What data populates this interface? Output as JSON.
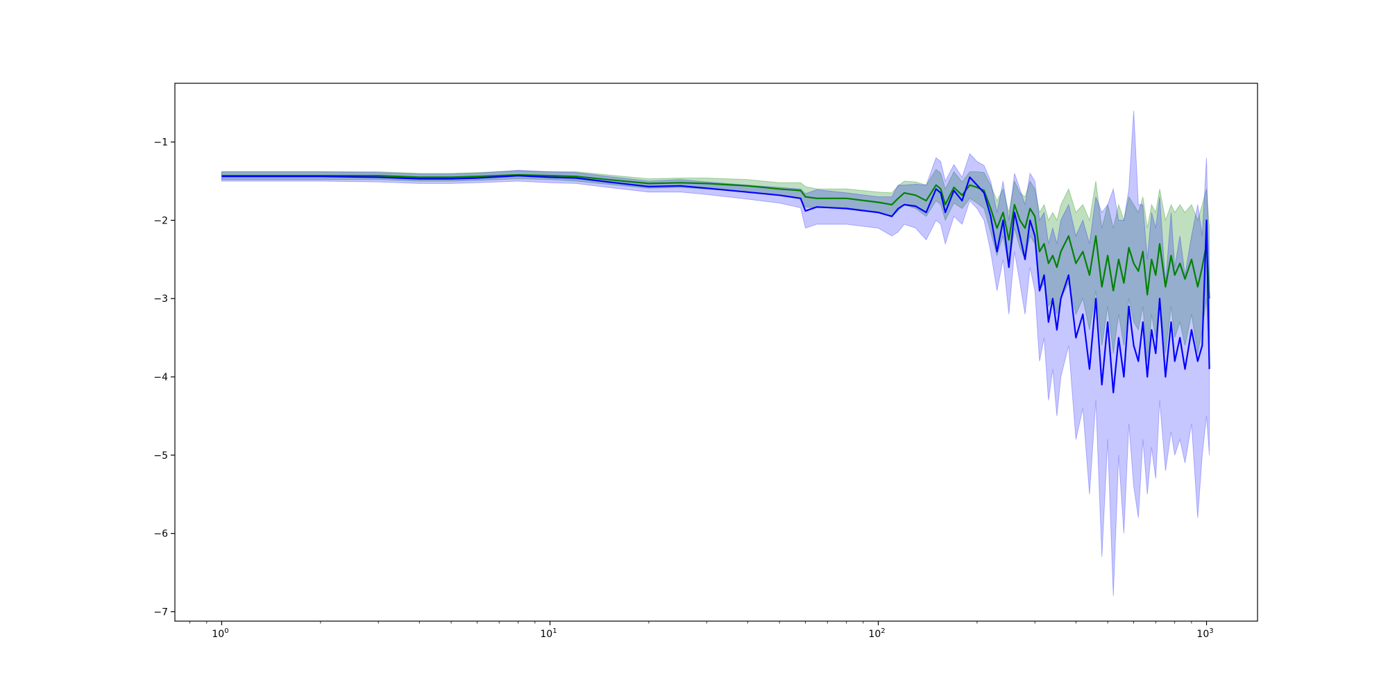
{
  "chart_data": {
    "type": "line",
    "xscale": "log",
    "xlim": [
      0.72,
      1430
    ],
    "ylim": [
      -7.12,
      -0.25
    ],
    "grid": false,
    "legend": "none",
    "title": "",
    "xlabel": "",
    "ylabel": "",
    "x_ticks": [
      {
        "value": 1,
        "base": "10",
        "exp": "0"
      },
      {
        "value": 10,
        "base": "10",
        "exp": "1"
      },
      {
        "value": 100,
        "base": "10",
        "exp": "2"
      },
      {
        "value": 1000,
        "base": "10",
        "exp": "3"
      }
    ],
    "y_ticks": [
      {
        "value": -1,
        "label": "−1"
      },
      {
        "value": -2,
        "label": "−2"
      },
      {
        "value": -3,
        "label": "−3"
      },
      {
        "value": -4,
        "label": "−4"
      },
      {
        "value": -5,
        "label": "−5"
      },
      {
        "value": -6,
        "label": "−6"
      },
      {
        "value": -7,
        "label": "−7"
      }
    ],
    "series": [
      {
        "color": "#008000",
        "band_color": "#008000",
        "band_opacity": 0.25,
        "x": [
          1,
          2,
          3,
          4,
          5,
          6,
          8,
          10,
          12,
          15,
          20,
          25,
          30,
          40,
          50,
          58,
          60,
          65,
          80,
          100,
          110,
          115,
          120,
          130,
          140,
          150,
          155,
          160,
          170,
          180,
          190,
          200,
          210,
          220,
          230,
          240,
          250,
          260,
          270,
          280,
          290,
          300,
          310,
          320,
          330,
          340,
          350,
          360,
          380,
          400,
          420,
          440,
          460,
          480,
          500,
          520,
          540,
          560,
          580,
          600,
          620,
          640,
          660,
          680,
          700,
          720,
          750,
          780,
          800,
          830,
          860,
          900,
          940,
          970,
          1000,
          1020
        ],
        "y": [
          -1.43,
          -1.43,
          -1.43,
          -1.45,
          -1.45,
          -1.44,
          -1.42,
          -1.43,
          -1.44,
          -1.48,
          -1.53,
          -1.52,
          -1.53,
          -1.56,
          -1.6,
          -1.62,
          -1.7,
          -1.72,
          -1.72,
          -1.77,
          -1.8,
          -1.72,
          -1.65,
          -1.68,
          -1.75,
          -1.55,
          -1.6,
          -1.8,
          -1.58,
          -1.68,
          -1.55,
          -1.58,
          -1.62,
          -1.85,
          -2.1,
          -1.9,
          -2.25,
          -1.8,
          -2.0,
          -2.1,
          -1.85,
          -1.95,
          -2.4,
          -2.3,
          -2.55,
          -2.45,
          -2.6,
          -2.4,
          -2.2,
          -2.55,
          -2.4,
          -2.7,
          -2.2,
          -2.85,
          -2.45,
          -2.9,
          -2.5,
          -2.8,
          -2.35,
          -2.55,
          -2.65,
          -2.4,
          -2.95,
          -2.5,
          -2.7,
          -2.3,
          -2.85,
          -2.45,
          -2.7,
          -2.55,
          -2.75,
          -2.5,
          -2.85,
          -2.6,
          -2.3,
          -3.0
        ],
        "lower": [
          -1.48,
          -1.48,
          -1.48,
          -1.5,
          -1.5,
          -1.49,
          -1.47,
          -1.48,
          -1.5,
          -1.54,
          -1.59,
          -1.58,
          -1.6,
          -1.64,
          -1.68,
          -1.72,
          -1.83,
          -1.84,
          -1.84,
          -1.9,
          -1.95,
          -1.88,
          -1.8,
          -1.85,
          -1.95,
          -1.75,
          -1.8,
          -2.0,
          -1.78,
          -1.85,
          -1.72,
          -1.78,
          -1.85,
          -2.15,
          -2.45,
          -2.2,
          -2.6,
          -2.1,
          -2.35,
          -2.5,
          -2.2,
          -2.3,
          -2.9,
          -2.8,
          -3.1,
          -3.0,
          -3.2,
          -3.0,
          -2.8,
          -3.2,
          -3.0,
          -3.4,
          -2.9,
          -3.6,
          -3.1,
          -3.7,
          -3.2,
          -3.6,
          -3.0,
          -3.3,
          -3.4,
          -3.1,
          -3.8,
          -3.2,
          -3.5,
          -3.0,
          -3.7,
          -3.1,
          -3.5,
          -3.3,
          -3.6,
          -3.2,
          -3.7,
          -3.4,
          -3.0,
          -3.9
        ],
        "upper": [
          -1.38,
          -1.38,
          -1.38,
          -1.4,
          -1.4,
          -1.39,
          -1.37,
          -1.38,
          -1.38,
          -1.42,
          -1.47,
          -1.46,
          -1.46,
          -1.48,
          -1.52,
          -1.52,
          -1.57,
          -1.6,
          -1.6,
          -1.64,
          -1.65,
          -1.56,
          -1.5,
          -1.51,
          -1.55,
          -1.35,
          -1.4,
          -1.6,
          -1.38,
          -1.51,
          -1.38,
          -1.38,
          -1.39,
          -1.55,
          -1.75,
          -1.6,
          -1.9,
          -1.5,
          -1.65,
          -1.7,
          -1.5,
          -1.6,
          -1.9,
          -1.8,
          -2.0,
          -1.9,
          -2.0,
          -1.8,
          -1.6,
          -1.9,
          -1.8,
          -2.0,
          -1.5,
          -2.1,
          -1.8,
          -2.1,
          -1.8,
          -2.0,
          -1.7,
          -1.8,
          -1.9,
          -1.7,
          -2.1,
          -1.8,
          -1.9,
          -1.6,
          -2.0,
          -1.8,
          -1.9,
          -1.8,
          -1.9,
          -1.8,
          -2.0,
          -1.8,
          -1.6,
          -2.1
        ]
      },
      {
        "color": "#0000ff",
        "band_color": "#0000ff",
        "band_opacity": 0.22,
        "x": [
          1,
          2,
          3,
          4,
          5,
          6,
          8,
          10,
          12,
          15,
          20,
          25,
          30,
          40,
          50,
          58,
          60,
          65,
          80,
          100,
          110,
          115,
          120,
          130,
          140,
          150,
          155,
          160,
          170,
          180,
          190,
          200,
          210,
          220,
          230,
          240,
          250,
          260,
          270,
          280,
          290,
          300,
          310,
          320,
          330,
          340,
          350,
          360,
          380,
          400,
          420,
          440,
          460,
          480,
          500,
          520,
          540,
          560,
          580,
          600,
          620,
          640,
          660,
          680,
          700,
          720,
          750,
          780,
          800,
          830,
          860,
          900,
          940,
          970,
          1000,
          1020
        ],
        "y": [
          -1.44,
          -1.44,
          -1.45,
          -1.47,
          -1.47,
          -1.46,
          -1.43,
          -1.45,
          -1.46,
          -1.51,
          -1.57,
          -1.56,
          -1.59,
          -1.64,
          -1.68,
          -1.72,
          -1.88,
          -1.83,
          -1.85,
          -1.9,
          -1.95,
          -1.85,
          -1.8,
          -1.82,
          -1.9,
          -1.6,
          -1.65,
          -1.9,
          -1.62,
          -1.75,
          -1.45,
          -1.55,
          -1.65,
          -1.95,
          -2.4,
          -2.0,
          -2.6,
          -1.9,
          -2.2,
          -2.5,
          -2.0,
          -2.2,
          -2.9,
          -2.7,
          -3.3,
          -3.0,
          -3.4,
          -3.0,
          -2.7,
          -3.5,
          -3.2,
          -3.9,
          -3.0,
          -4.1,
          -3.3,
          -4.2,
          -3.5,
          -4.0,
          -3.1,
          -3.6,
          -3.8,
          -3.3,
          -4.0,
          -3.4,
          -3.7,
          -3.0,
          -4.0,
          -3.3,
          -3.8,
          -3.5,
          -3.9,
          -3.4,
          -3.8,
          -3.6,
          -2.0,
          -3.9
        ],
        "lower": [
          -1.5,
          -1.5,
          -1.51,
          -1.53,
          -1.53,
          -1.52,
          -1.5,
          -1.52,
          -1.53,
          -1.58,
          -1.64,
          -1.64,
          -1.67,
          -1.73,
          -1.78,
          -1.84,
          -2.1,
          -2.05,
          -2.05,
          -2.1,
          -2.2,
          -2.15,
          -2.05,
          -2.1,
          -2.25,
          -2.0,
          -2.05,
          -2.3,
          -1.95,
          -2.05,
          -1.75,
          -1.85,
          -2.0,
          -2.4,
          -2.9,
          -2.5,
          -3.2,
          -2.4,
          -2.8,
          -3.2,
          -2.6,
          -2.9,
          -3.8,
          -3.5,
          -4.3,
          -3.9,
          -4.5,
          -4.0,
          -3.6,
          -4.8,
          -4.4,
          -5.5,
          -4.3,
          -6.3,
          -4.8,
          -6.8,
          -5.0,
          -6.0,
          -4.6,
          -5.4,
          -5.8,
          -4.8,
          -5.5,
          -4.9,
          -5.3,
          -4.3,
          -5.2,
          -4.7,
          -5.0,
          -4.8,
          -5.1,
          -4.6,
          -5.8,
          -5.0,
          -4.5,
          -5.0
        ],
        "upper": [
          -1.38,
          -1.38,
          -1.39,
          -1.41,
          -1.41,
          -1.4,
          -1.36,
          -1.38,
          -1.39,
          -1.44,
          -1.5,
          -1.48,
          -1.51,
          -1.55,
          -1.58,
          -1.6,
          -1.66,
          -1.61,
          -1.65,
          -1.7,
          -1.7,
          -1.55,
          -1.55,
          -1.54,
          -1.55,
          -1.2,
          -1.25,
          -1.5,
          -1.29,
          -1.45,
          -1.15,
          -1.25,
          -1.3,
          -1.5,
          -1.9,
          -1.5,
          -2.0,
          -1.4,
          -1.6,
          -1.8,
          -1.4,
          -1.5,
          -2.0,
          -1.9,
          -2.3,
          -2.1,
          -2.3,
          -2.0,
          -1.8,
          -2.2,
          -2.0,
          -2.3,
          -1.7,
          -1.9,
          -1.8,
          -1.6,
          -2.0,
          -2.0,
          -1.6,
          -0.6,
          -1.8,
          -1.8,
          -2.5,
          -1.9,
          -2.1,
          -1.7,
          -2.8,
          -1.9,
          -2.6,
          -2.2,
          -2.7,
          -2.2,
          -1.8,
          -2.2,
          -1.2,
          -2.8
        ]
      }
    ]
  }
}
